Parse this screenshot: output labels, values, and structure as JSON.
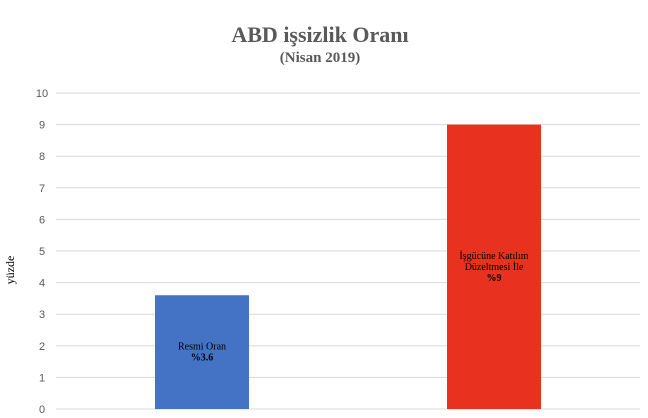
{
  "chart_data": {
    "type": "bar",
    "title": "ABD işsizlik Oranı",
    "subtitle": "(Nisan 2019)",
    "xlabel": "",
    "ylabel": "yüzde",
    "ylim": [
      0,
      10
    ],
    "yticks": [
      "0",
      "1",
      "2",
      "3",
      "4",
      "5",
      "6",
      "7",
      "8",
      "9",
      "10"
    ],
    "grid": true,
    "categories": [
      "Resmi Oran",
      "İşgücüne Katılım Düzeltmesi İle"
    ],
    "values": [
      3.6,
      9
    ],
    "bar_labels": [
      [
        "Resmi Oran",
        "%3.6"
      ],
      [
        "İşgücüne Katılım",
        "Düzeltmesi  İle",
        "%9"
      ]
    ],
    "colors": [
      "#4472C4",
      "#E8321F"
    ]
  }
}
